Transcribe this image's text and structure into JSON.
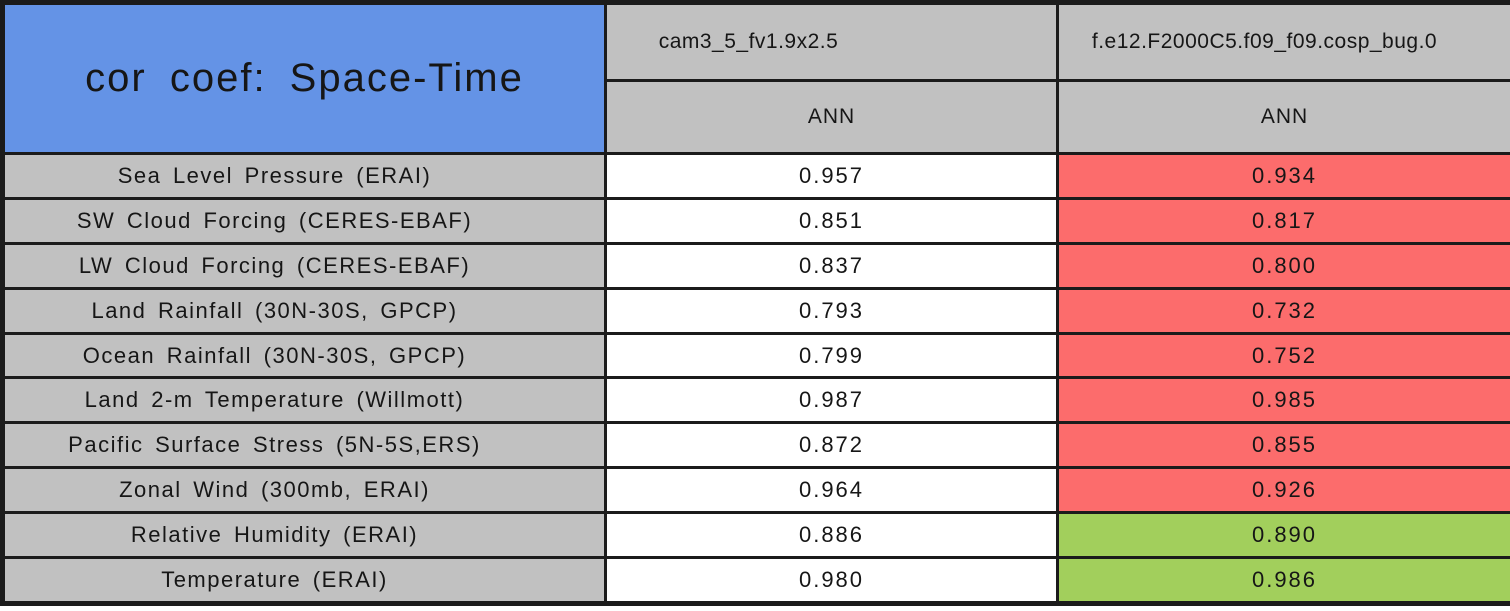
{
  "table": {
    "title": "cor coef: Space-Time",
    "header": {
      "case1_model": "cam3_5_fv1.9x2.5",
      "case2_model": "f.e12.F2000C5.f09_f09.cosp_bug.0",
      "case1_season": "ANN",
      "case2_season": "ANN"
    },
    "rows": [
      {
        "label": "Sea Level Pressure (ERAI)",
        "case1": "0.957",
        "case2": "0.934",
        "status": "worse"
      },
      {
        "label": "SW Cloud Forcing (CERES-EBAF)",
        "case1": "0.851",
        "case2": "0.817",
        "status": "worse"
      },
      {
        "label": "LW Cloud Forcing (CERES-EBAF)",
        "case1": "0.837",
        "case2": "0.800",
        "status": "worse"
      },
      {
        "label": "Land Rainfall (30N-30S, GPCP)",
        "case1": "0.793",
        "case2": "0.732",
        "status": "worse"
      },
      {
        "label": "Ocean Rainfall (30N-30S, GPCP)",
        "case1": "0.799",
        "case2": "0.752",
        "status": "worse"
      },
      {
        "label": "Land 2-m Temperature (Willmott)",
        "case1": "0.987",
        "case2": "0.985",
        "status": "worse"
      },
      {
        "label": "Pacific Surface Stress (5N-5S,ERS)",
        "case1": "0.872",
        "case2": "0.855",
        "status": "worse"
      },
      {
        "label": "Zonal Wind (300mb, ERAI)",
        "case1": "0.964",
        "case2": "0.926",
        "status": "worse"
      },
      {
        "label": "Relative Humidity (ERAI)",
        "case1": "0.886",
        "case2": "0.890",
        "status": "better"
      },
      {
        "label": "Temperature (ERAI)",
        "case1": "0.980",
        "case2": "0.986",
        "status": "better"
      }
    ],
    "colors": {
      "title_cell_blue": "#6493e6",
      "header_label_gray": "#c1c1c1",
      "worse_red": "#fc6c6c",
      "better_green": "#a2cf5c",
      "neutral_white": "#ffffff",
      "border": "#1b1b1b"
    }
  },
  "chart_data": {
    "type": "table",
    "title": "cor coef: Space-Time",
    "columns": [
      "cam3_5_fv1.9x2.5 ANN",
      "f.e12.F2000C5.f09_f09.cosp_bug.0 ANN"
    ],
    "row_labels": [
      "Sea Level Pressure (ERAI)",
      "SW Cloud Forcing (CERES-EBAF)",
      "LW Cloud Forcing (CERES-EBAF)",
      "Land Rainfall (30N-30S, GPCP)",
      "Ocean Rainfall (30N-30S, GPCP)",
      "Land 2-m Temperature (Willmott)",
      "Pacific Surface Stress (5N-5S,ERS)",
      "Zonal Wind (300mb, ERAI)",
      "Relative Humidity (ERAI)",
      "Temperature (ERAI)"
    ],
    "values": [
      [
        0.957,
        0.934
      ],
      [
        0.851,
        0.817
      ],
      [
        0.837,
        0.8
      ],
      [
        0.793,
        0.732
      ],
      [
        0.799,
        0.752
      ],
      [
        0.987,
        0.985
      ],
      [
        0.872,
        0.855
      ],
      [
        0.964,
        0.926
      ],
      [
        0.886,
        0.89
      ],
      [
        0.98,
        0.986
      ]
    ],
    "second_column_highlight": [
      "worse",
      "worse",
      "worse",
      "worse",
      "worse",
      "worse",
      "worse",
      "worse",
      "better",
      "better"
    ],
    "highlight_colors": {
      "worse": "#fc6c6c",
      "better": "#a2cf5c"
    }
  }
}
